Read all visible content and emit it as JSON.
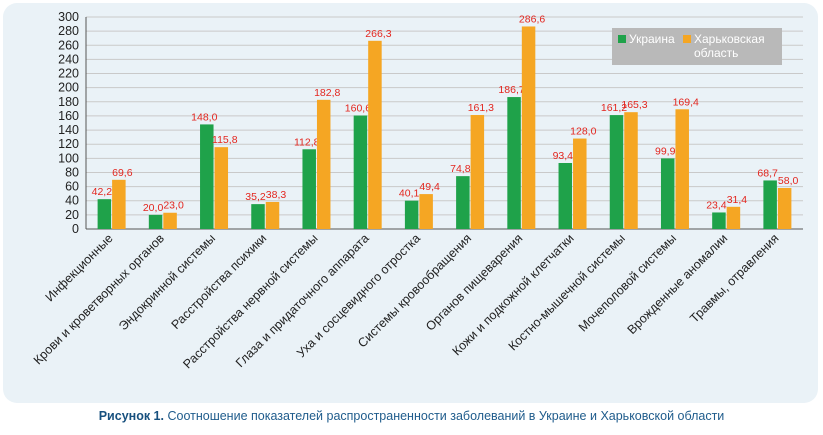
{
  "chart_data": {
    "type": "bar",
    "categories": [
      "Инфекционные",
      "Крови и кроветворных органов",
      "Эндокринной системы",
      "Расстройства психики",
      "Расстройства нервной системы",
      "Глаза и придаточного аппарата",
      "Уха и сосцевидного отростка",
      "Системы кровообращения",
      "Органов пищеварения",
      "Кожи и подкожной клетчатки",
      "Костно-мышечной системы",
      "Мочеполовой системы",
      "Врожденные аномалии",
      "Травмы, отравления"
    ],
    "series": [
      {
        "name": "Украина",
        "color": "#1fa24a",
        "values": [
          42.2,
          20.0,
          148.0,
          35.2,
          112.8,
          160.6,
          40.1,
          74.8,
          186.7,
          93.4,
          161.2,
          99.9,
          23.4,
          68.7
        ],
        "labels": [
          "42,2",
          "20,0",
          "148,0",
          "35,2",
          "112,8",
          "160,6",
          "40,1",
          "74,8",
          "186,7",
          "93,4",
          "161,2",
          "99,9",
          "23,4",
          "68,7"
        ]
      },
      {
        "name": "Харьковская область",
        "color": "#f5a623",
        "values": [
          69.6,
          23.0,
          115.8,
          38.3,
          182.8,
          266.3,
          49.4,
          161.3,
          286.6,
          128.0,
          165.3,
          169.4,
          31.4,
          58.0
        ],
        "labels": [
          "69,6",
          "23,0",
          "115,8",
          "38,3",
          "182,8",
          "266,3",
          "49,4",
          "161,3",
          "286,6",
          "128,0",
          "165,3",
          "169,4",
          "31,4",
          "58,0"
        ]
      }
    ],
    "ylim": [
      0,
      300
    ],
    "ytick_step": 20,
    "grid": true,
    "legend_position": "top-right",
    "value_label_color": "#e3261f"
  },
  "legend": {
    "ukraine": "Украина",
    "kharkiv": "Харьковская область"
  },
  "caption": {
    "figure": "Рисунок 1.",
    "text": "Соотношение показателей распространенности заболеваний в Украине и Харьковской области"
  }
}
